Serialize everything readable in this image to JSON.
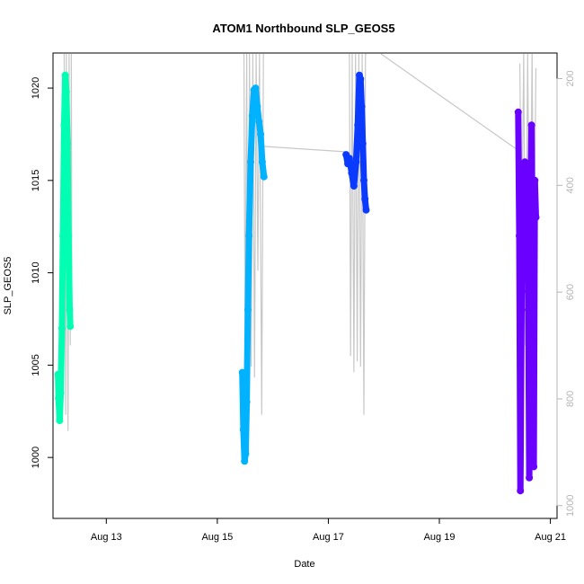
{
  "chart_data": {
    "type": "line",
    "title": "ATOM1 Northbound SLP_GEOS5",
    "xlabel": "Date",
    "ylabel": "SLP_GEOS5",
    "x_ticks": [
      "Aug 13",
      "Aug 15",
      "Aug 17",
      "Aug 19",
      "Aug 21"
    ],
    "x_tick_days": [
      13,
      15,
      17,
      19,
      21
    ],
    "xlim_days": [
      12.04,
      21.12
    ],
    "y_ticks": [
      1000,
      1005,
      1010,
      1015,
      1020
    ],
    "ylim": [
      996.7,
      1021.9
    ],
    "y2_ticks": [
      200,
      400,
      600,
      800,
      1000
    ],
    "y2lim": [
      1024,
      152
    ],
    "grid": false,
    "legend": "none",
    "series": [
      {
        "role": "pressure-altitude trace",
        "color": "#c8c8c8",
        "axis": "right",
        "segments": [
          {
            "x": [
              12.24,
              12.27,
              12.28,
              12.31,
              12.33,
              12.35,
              12.37,
              12.38
            ],
            "y": [
              152,
              830,
              152,
              860,
              152,
              700,
              152,
              650
            ]
          },
          {
            "x": [
              15.48,
              15.5,
              15.53,
              15.55,
              15.58,
              15.61,
              15.64,
              15.67,
              15.7,
              15.73,
              15.76,
              15.8,
              15.83
            ],
            "y": [
              152,
              700,
              152,
              820,
              152,
              740,
              152,
              760,
              152,
              560,
              152,
              830,
              152
            ]
          },
          {
            "x": [
              15.85,
              17.3
            ],
            "y": [
              327,
              337
            ]
          },
          {
            "x": [
              17.38,
              17.4,
              17.43,
              17.46,
              17.49,
              17.52,
              17.55,
              17.58,
              17.61,
              17.64,
              17.67,
              17.69
            ],
            "y": [
              152,
              720,
              152,
              750,
              152,
              730,
              152,
              740,
              152,
              830,
              152,
              152
            ]
          },
          {
            "x": [
              17.95,
              20.4
            ],
            "y": [
              152,
              333
            ]
          },
          {
            "x": [
              20.45,
              20.48,
              20.52,
              20.55,
              20.59,
              20.63,
              20.67,
              20.7,
              20.74
            ],
            "y": [
              172,
              520,
              152,
              700,
              152,
              640,
              152,
              580,
              180
            ]
          }
        ]
      },
      {
        "role": "SLP segment 1",
        "color": "#00ffb2",
        "axis": "left",
        "x": [
          12.13,
          12.14,
          12.16,
          12.18,
          12.2,
          12.22,
          12.24,
          12.26,
          12.28,
          12.3,
          12.32,
          12.34,
          12.35
        ],
        "y": [
          1004.5,
          1003.2,
          1002.0,
          1003.5,
          1007.0,
          1012.0,
          1018.0,
          1020.7,
          1019.8,
          1017.0,
          1012.0,
          1008.0,
          1007.1
        ]
      },
      {
        "role": "SLP segment 2",
        "color": "#00b2ff",
        "axis": "left",
        "x": [
          15.45,
          15.47,
          15.49,
          15.51,
          15.53,
          15.55,
          15.57,
          15.6,
          15.63,
          15.66,
          15.69,
          15.72,
          15.75,
          15.78,
          15.81,
          15.84
        ],
        "y": [
          1004.6,
          1001.5,
          999.8,
          1000.2,
          1003.0,
          1008.0,
          1012.0,
          1016.0,
          1018.5,
          1019.9,
          1020.0,
          1019.0,
          1018.2,
          1017.5,
          1016.0,
          1015.2
        ]
      },
      {
        "role": "SLP segment 3",
        "color": "#0a3aff",
        "axis": "left",
        "x": [
          17.32,
          17.35,
          17.38,
          17.42,
          17.46,
          17.5,
          17.53,
          17.56,
          17.58,
          17.6,
          17.62,
          17.64,
          17.66,
          17.68
        ],
        "y": [
          1016.4,
          1015.9,
          1016.2,
          1015.4,
          1014.7,
          1016.0,
          1018.0,
          1020.7,
          1020.5,
          1019.0,
          1017.0,
          1015.0,
          1014.0,
          1013.4
        ]
      },
      {
        "role": "SLP segment 4",
        "color": "#6a00ff",
        "axis": "left",
        "x": [
          20.42,
          20.44,
          20.46,
          20.48,
          20.5,
          20.52,
          20.54,
          20.56,
          20.58,
          20.6,
          20.62,
          20.64,
          20.66,
          20.68,
          20.7,
          20.72,
          20.74
        ],
        "y": [
          1018.7,
          1012.0,
          998.2,
          1008.0,
          1014.5,
          1011.0,
          1016.0,
          1013.0,
          1015.5,
          1009.0,
          998.9,
          1014.0,
          1018.0,
          1010.0,
          999.5,
          1015.0,
          1013.0
        ]
      }
    ]
  }
}
